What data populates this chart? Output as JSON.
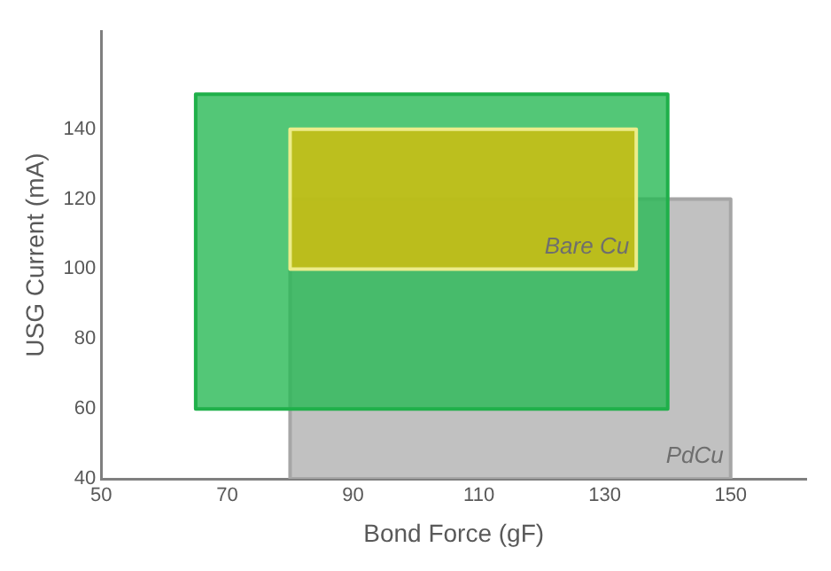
{
  "chart_data": {
    "type": "area",
    "xlabel": "Bond Force (gF)",
    "ylabel": "USG Current (mA)",
    "series": [
      {
        "name": "PdCu",
        "color": "#a6a6a6",
        "x": [
          80,
          150,
          150,
          80,
          80
        ],
        "values": [
          40,
          40,
          120,
          120,
          40
        ]
      },
      {
        "color": "#1fb04a",
        "x": [
          65,
          140,
          140,
          65,
          65
        ],
        "values": [
          60,
          60,
          150,
          150,
          60
        ]
      },
      {
        "name": "Bare Cu",
        "color": "#ecec8a",
        "x": [
          80,
          135,
          135,
          80,
          80
        ],
        "values": [
          100,
          100,
          140,
          140,
          100
        ]
      }
    ],
    "xlim": [
      50,
      162
    ],
    "xticks": [
      50,
      70,
      90,
      110,
      130,
      150
    ],
    "ylim": [
      40,
      168
    ],
    "yticks": [
      40,
      60,
      80,
      100,
      120,
      140
    ],
    "grid": false,
    "legend": false,
    "marker": "none",
    "line_style": "solid"
  }
}
